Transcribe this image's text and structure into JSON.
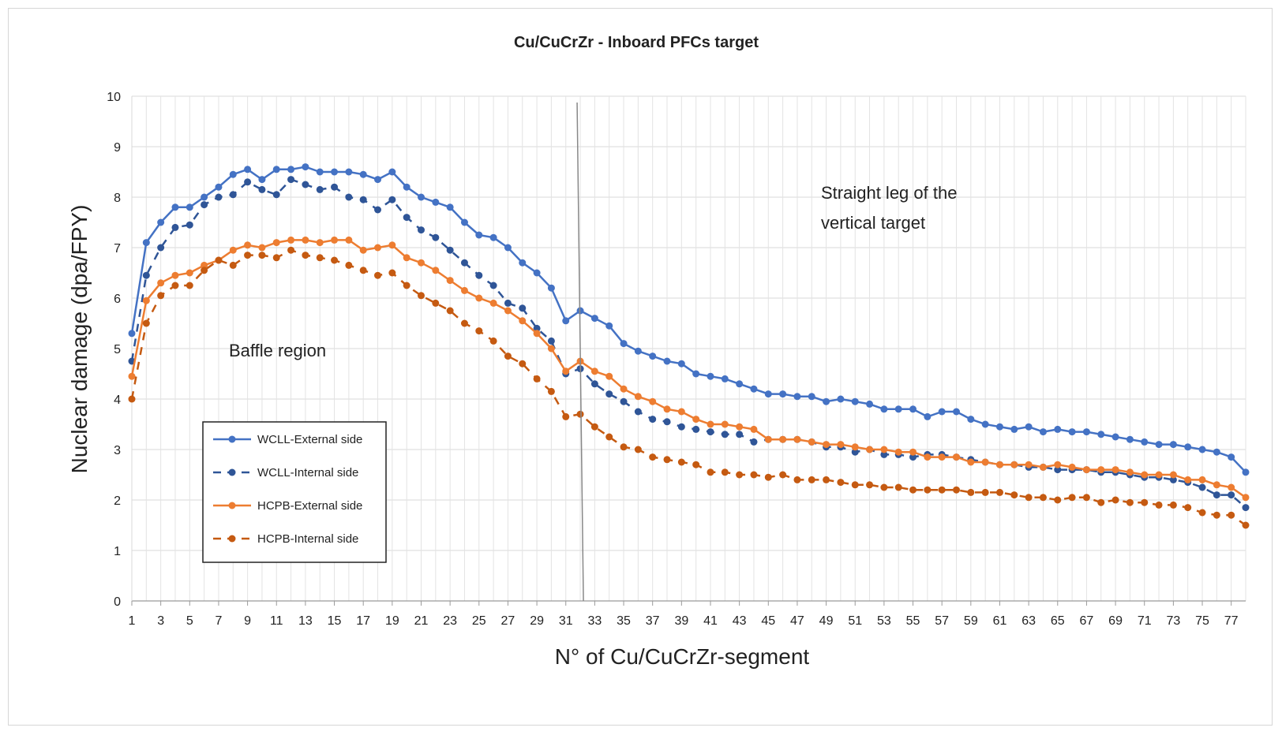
{
  "chart_data": {
    "type": "line",
    "title": "Cu/CuCrZr - Inboard PFCs target",
    "xlabel": "N° of Cu/CuCrZr-segment",
    "ylabel": "Nuclear damage (dpa/FPY)",
    "xlim": [
      1,
      78
    ],
    "ylim": [
      0,
      10
    ],
    "yticks": [
      "0",
      "1",
      "2",
      "3",
      "4",
      "5",
      "6",
      "7",
      "8",
      "9",
      "10"
    ],
    "xticks": [
      "1",
      "3",
      "5",
      "7",
      "9",
      "11",
      "13",
      "15",
      "17",
      "19",
      "21",
      "23",
      "25",
      "27",
      "29",
      "31",
      "33",
      "35",
      "37",
      "39",
      "41",
      "43",
      "45",
      "47",
      "49",
      "51",
      "53",
      "55",
      "57",
      "59",
      "61",
      "63",
      "65",
      "67",
      "69",
      "71",
      "73",
      "75",
      "77"
    ],
    "grid": true,
    "legend_position": "lower-left",
    "annotations": {
      "vline_x": 32,
      "baffle": "Baffle region",
      "straight_line1": "Straight leg of the",
      "straight_line2": "vertical target"
    },
    "x": [
      1,
      2,
      3,
      4,
      5,
      6,
      7,
      8,
      9,
      10,
      11,
      12,
      13,
      14,
      15,
      16,
      17,
      18,
      19,
      20,
      21,
      22,
      23,
      24,
      25,
      26,
      27,
      28,
      29,
      30,
      31,
      32,
      33,
      34,
      35,
      36,
      37,
      38,
      39,
      40,
      41,
      42,
      43,
      44,
      45,
      46,
      47,
      48,
      49,
      50,
      51,
      52,
      53,
      54,
      55,
      56,
      57,
      58,
      59,
      60,
      61,
      62,
      63,
      64,
      65,
      66,
      67,
      68,
      69,
      70,
      71,
      72,
      73,
      74,
      75,
      76,
      77,
      78
    ],
    "series": [
      {
        "name": "WCLL-External side",
        "color": "#4472C4",
        "style": "solid",
        "values": [
          5.3,
          7.1,
          7.5,
          7.8,
          7.8,
          8.0,
          8.2,
          8.45,
          8.55,
          8.35,
          8.55,
          8.55,
          8.6,
          8.5,
          8.5,
          8.5,
          8.45,
          8.35,
          8.5,
          8.2,
          8.0,
          7.9,
          7.8,
          7.5,
          7.25,
          7.2,
          7.0,
          6.7,
          6.5,
          6.2,
          5.55,
          5.75,
          5.6,
          5.45,
          5.1,
          4.95,
          4.85,
          4.75,
          4.7,
          4.5,
          4.45,
          4.4,
          4.3,
          4.2,
          4.1,
          4.1,
          4.05,
          4.05,
          3.95,
          4.0,
          3.95,
          3.9,
          3.8,
          3.8,
          3.8,
          3.65,
          3.75,
          3.75,
          3.6,
          3.5,
          3.45,
          3.4,
          3.45,
          3.35,
          3.4,
          3.35,
          3.35,
          3.3,
          3.25,
          3.2,
          3.15,
          3.1,
          3.1,
          3.05,
          3.0,
          2.95,
          2.85,
          2.55
        ]
      },
      {
        "name": "WCLL-Internal side",
        "color": "#2F5597",
        "style": "dashed",
        "values": [
          4.75,
          6.45,
          7.0,
          7.4,
          7.45,
          7.85,
          8.0,
          8.05,
          8.3,
          8.15,
          8.05,
          8.35,
          8.25,
          8.15,
          8.2,
          8.0,
          7.95,
          7.75,
          7.95,
          7.6,
          7.35,
          7.2,
          6.95,
          6.7,
          6.45,
          6.25,
          5.9,
          5.8,
          5.4,
          5.15,
          4.5,
          4.6,
          4.3,
          4.1,
          3.95,
          3.75,
          3.6,
          3.55,
          3.45,
          3.4,
          3.35,
          3.3,
          3.3,
          3.15,
          3.2,
          3.2,
          3.2,
          3.15,
          3.05,
          3.05,
          2.95,
          3.0,
          2.9,
          2.9,
          2.85,
          2.9,
          2.9,
          2.85,
          2.8,
          2.75,
          2.7,
          2.7,
          2.65,
          2.65,
          2.6,
          2.6,
          2.6,
          2.55,
          2.55,
          2.5,
          2.45,
          2.45,
          2.4,
          2.35,
          2.25,
          2.1,
          2.1,
          1.85
        ]
      },
      {
        "name": "HCPB-External side",
        "color": "#ED7D31",
        "style": "solid",
        "values": [
          4.45,
          5.95,
          6.3,
          6.45,
          6.5,
          6.65,
          6.75,
          6.95,
          7.05,
          7.0,
          7.1,
          7.15,
          7.15,
          7.1,
          7.15,
          7.15,
          6.95,
          7.0,
          7.05,
          6.8,
          6.7,
          6.55,
          6.35,
          6.15,
          6.0,
          5.9,
          5.75,
          5.55,
          5.3,
          5.0,
          4.55,
          4.75,
          4.55,
          4.45,
          4.2,
          4.05,
          3.95,
          3.8,
          3.75,
          3.6,
          3.5,
          3.5,
          3.45,
          3.4,
          3.2,
          3.2,
          3.2,
          3.15,
          3.1,
          3.1,
          3.05,
          3.0,
          3.0,
          2.95,
          2.95,
          2.85,
          2.85,
          2.85,
          2.75,
          2.75,
          2.7,
          2.7,
          2.7,
          2.65,
          2.7,
          2.65,
          2.6,
          2.6,
          2.6,
          2.55,
          2.5,
          2.5,
          2.5,
          2.4,
          2.4,
          2.3,
          2.25,
          2.05
        ]
      },
      {
        "name": "HCPB-Internal side",
        "color": "#C55A11",
        "style": "dashed",
        "values": [
          4.0,
          5.5,
          6.05,
          6.25,
          6.25,
          6.55,
          6.75,
          6.65,
          6.85,
          6.85,
          6.8,
          6.95,
          6.85,
          6.8,
          6.75,
          6.65,
          6.55,
          6.45,
          6.5,
          6.25,
          6.05,
          5.9,
          5.75,
          5.5,
          5.35,
          5.15,
          4.85,
          4.7,
          4.4,
          4.15,
          3.65,
          3.7,
          3.45,
          3.25,
          3.05,
          3.0,
          2.85,
          2.8,
          2.75,
          2.7,
          2.55,
          2.55,
          2.5,
          2.5,
          2.45,
          2.5,
          2.4,
          2.4,
          2.4,
          2.35,
          2.3,
          2.3,
          2.25,
          2.25,
          2.2,
          2.2,
          2.2,
          2.2,
          2.15,
          2.15,
          2.15,
          2.1,
          2.05,
          2.05,
          2.0,
          2.05,
          2.05,
          1.95,
          2.0,
          1.95,
          1.95,
          1.9,
          1.9,
          1.85,
          1.75,
          1.7,
          1.7,
          1.5
        ]
      }
    ]
  }
}
